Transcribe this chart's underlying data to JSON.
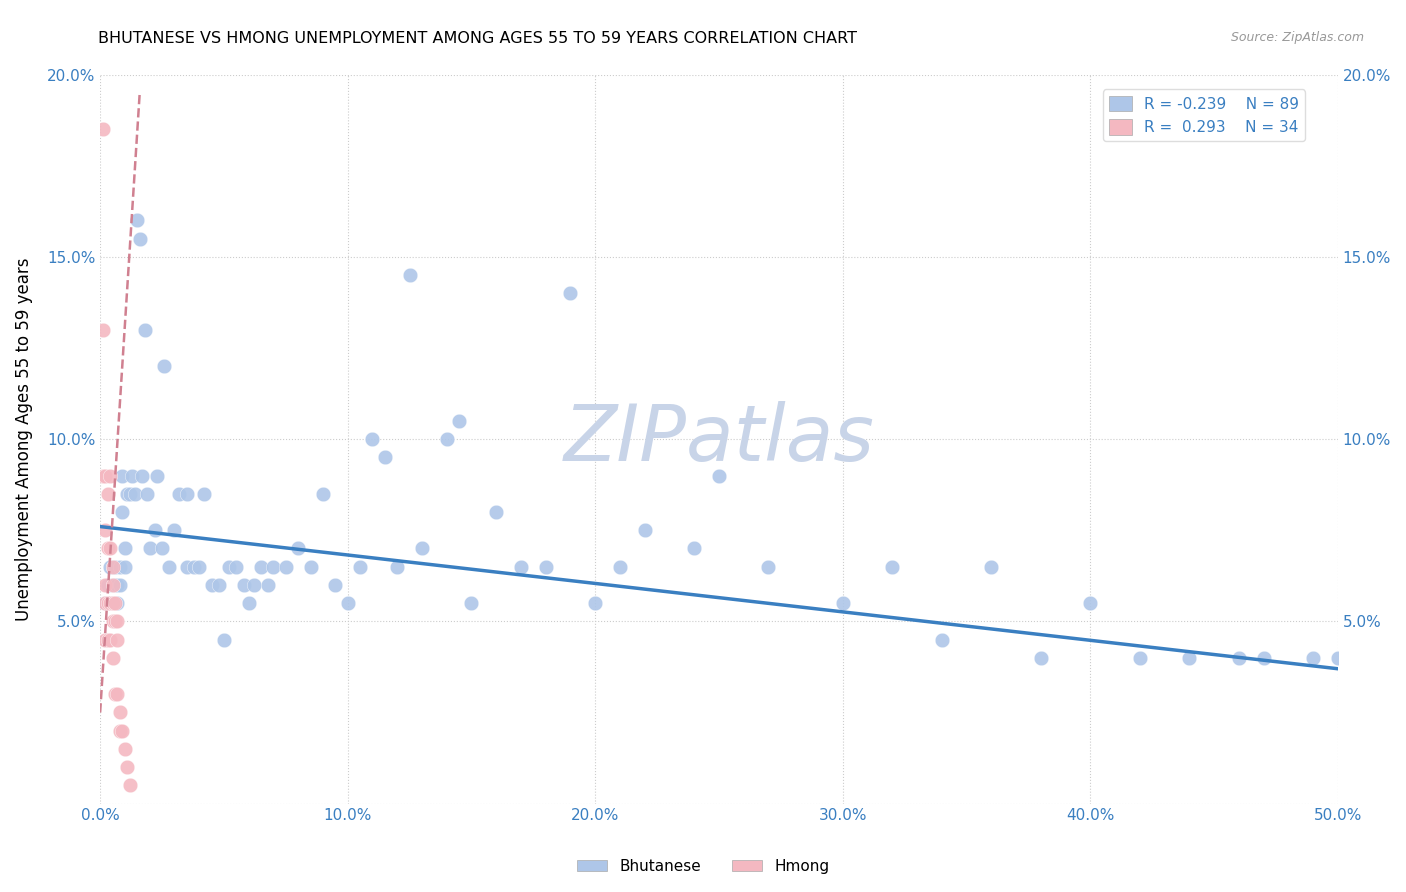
{
  "title": "BHUTANESE VS HMONG UNEMPLOYMENT AMONG AGES 55 TO 59 YEARS CORRELATION CHART",
  "source": "Source: ZipAtlas.com",
  "ylabel": "Unemployment Among Ages 55 to 59 years",
  "xlim": [
    0,
    0.5
  ],
  "ylim": [
    0,
    0.2
  ],
  "xticks": [
    0.0,
    0.1,
    0.2,
    0.3,
    0.4,
    0.5
  ],
  "yticks": [
    0.0,
    0.05,
    0.1,
    0.15,
    0.2
  ],
  "xtick_labels": [
    "0.0%",
    "10.0%",
    "20.0%",
    "30.0%",
    "40.0%",
    "50.0%"
  ],
  "ytick_labels": [
    "",
    "5.0%",
    "10.0%",
    "15.0%",
    "20.0%"
  ],
  "bhutanese_color": "#aec6e8",
  "hmong_color": "#f4b8c1",
  "bhutanese_R": -0.239,
  "bhutanese_N": 89,
  "hmong_R": 0.293,
  "hmong_N": 34,
  "line_color_bhutanese": "#3a7fc1",
  "line_color_hmong": "#d08090",
  "watermark": "ZIPatlas",
  "watermark_color": "#c8d4e8",
  "bhutanese_x": [
    0.002,
    0.003,
    0.003,
    0.004,
    0.004,
    0.005,
    0.005,
    0.005,
    0.006,
    0.006,
    0.006,
    0.007,
    0.007,
    0.008,
    0.008,
    0.009,
    0.009,
    0.01,
    0.01,
    0.011,
    0.012,
    0.013,
    0.014,
    0.015,
    0.016,
    0.017,
    0.018,
    0.019,
    0.02,
    0.022,
    0.023,
    0.025,
    0.026,
    0.028,
    0.03,
    0.032,
    0.035,
    0.035,
    0.038,
    0.04,
    0.042,
    0.045,
    0.048,
    0.05,
    0.052,
    0.055,
    0.058,
    0.06,
    0.062,
    0.065,
    0.068,
    0.07,
    0.075,
    0.08,
    0.085,
    0.09,
    0.095,
    0.1,
    0.105,
    0.11,
    0.115,
    0.12,
    0.125,
    0.13,
    0.14,
    0.145,
    0.15,
    0.16,
    0.17,
    0.18,
    0.19,
    0.2,
    0.21,
    0.22,
    0.24,
    0.25,
    0.27,
    0.3,
    0.32,
    0.34,
    0.36,
    0.38,
    0.4,
    0.42,
    0.44,
    0.46,
    0.47,
    0.49,
    0.5
  ],
  "bhutanese_y": [
    0.055,
    0.055,
    0.06,
    0.055,
    0.065,
    0.055,
    0.06,
    0.065,
    0.055,
    0.06,
    0.065,
    0.055,
    0.06,
    0.06,
    0.065,
    0.08,
    0.09,
    0.065,
    0.07,
    0.085,
    0.085,
    0.09,
    0.085,
    0.16,
    0.155,
    0.09,
    0.13,
    0.085,
    0.07,
    0.075,
    0.09,
    0.07,
    0.12,
    0.065,
    0.075,
    0.085,
    0.065,
    0.085,
    0.065,
    0.065,
    0.085,
    0.06,
    0.06,
    0.045,
    0.065,
    0.065,
    0.06,
    0.055,
    0.06,
    0.065,
    0.06,
    0.065,
    0.065,
    0.07,
    0.065,
    0.085,
    0.06,
    0.055,
    0.065,
    0.1,
    0.095,
    0.065,
    0.145,
    0.07,
    0.1,
    0.105,
    0.055,
    0.08,
    0.065,
    0.065,
    0.14,
    0.055,
    0.065,
    0.075,
    0.07,
    0.09,
    0.065,
    0.055,
    0.065,
    0.045,
    0.065,
    0.04,
    0.055,
    0.04,
    0.04,
    0.04,
    0.04,
    0.04,
    0.04
  ],
  "hmong_x": [
    0.001,
    0.001,
    0.001,
    0.002,
    0.002,
    0.002,
    0.002,
    0.002,
    0.003,
    0.003,
    0.003,
    0.003,
    0.004,
    0.004,
    0.004,
    0.004,
    0.005,
    0.005,
    0.005,
    0.005,
    0.005,
    0.005,
    0.006,
    0.006,
    0.006,
    0.007,
    0.007,
    0.007,
    0.008,
    0.008,
    0.009,
    0.01,
    0.011,
    0.012
  ],
  "hmong_y": [
    0.185,
    0.13,
    0.09,
    0.09,
    0.075,
    0.06,
    0.055,
    0.045,
    0.085,
    0.07,
    0.055,
    0.045,
    0.09,
    0.07,
    0.055,
    0.045,
    0.065,
    0.06,
    0.055,
    0.055,
    0.05,
    0.04,
    0.055,
    0.05,
    0.03,
    0.05,
    0.045,
    0.03,
    0.025,
    0.02,
    0.02,
    0.015,
    0.01,
    0.005
  ],
  "blue_line_x0": 0.0,
  "blue_line_y0": 0.076,
  "blue_line_x1": 0.5,
  "blue_line_y1": 0.037,
  "pink_line_x0": 0.0,
  "pink_line_y0": 0.025,
  "pink_line_x1": 0.016,
  "pink_line_y1": 0.195
}
